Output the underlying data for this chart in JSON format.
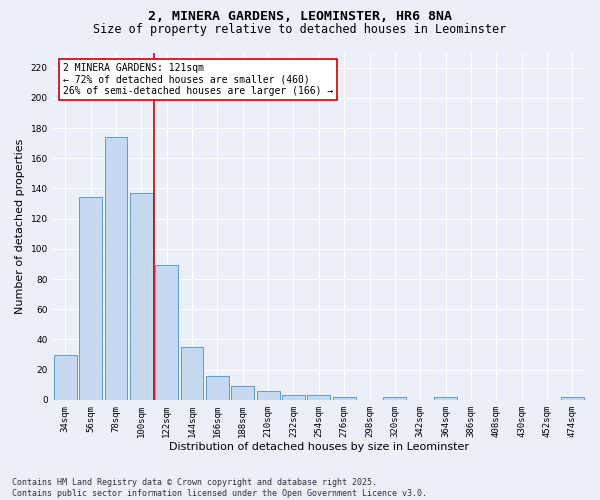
{
  "title_line1": "2, MINERA GARDENS, LEOMINSTER, HR6 8NA",
  "title_line2": "Size of property relative to detached houses in Leominster",
  "xlabel": "Distribution of detached houses by size in Leominster",
  "ylabel": "Number of detached properties",
  "categories": [
    "34sqm",
    "56sqm",
    "78sqm",
    "100sqm",
    "122sqm",
    "144sqm",
    "166sqm",
    "188sqm",
    "210sqm",
    "232sqm",
    "254sqm",
    "276sqm",
    "298sqm",
    "320sqm",
    "342sqm",
    "364sqm",
    "386sqm",
    "408sqm",
    "430sqm",
    "452sqm",
    "474sqm"
  ],
  "values": [
    30,
    134,
    174,
    137,
    89,
    35,
    16,
    9,
    6,
    3,
    3,
    2,
    0,
    2,
    0,
    2,
    0,
    0,
    0,
    0,
    2
  ],
  "bar_color": "#c5d8f0",
  "bar_edge_color": "#5b9bd5",
  "bar_edge_width": 0.7,
  "marker_color": "#cc0000",
  "annotation_text": "2 MINERA GARDENS: 121sqm\n← 72% of detached houses are smaller (460)\n26% of semi-detached houses are larger (166) →",
  "annotation_box_color": "#cc0000",
  "ylim": [
    0,
    230
  ],
  "yticks": [
    0,
    20,
    40,
    60,
    80,
    100,
    120,
    140,
    160,
    180,
    200,
    220
  ],
  "background_color": "#eaeff8",
  "plot_background": "#eaeff8",
  "footer_line1": "Contains HM Land Registry data © Crown copyright and database right 2025.",
  "footer_line2": "Contains public sector information licensed under the Open Government Licence v3.0.",
  "title_fontsize": 9.5,
  "subtitle_fontsize": 8.5,
  "tick_fontsize": 6.5,
  "label_fontsize": 8,
  "annotation_fontsize": 7,
  "footer_fontsize": 6
}
